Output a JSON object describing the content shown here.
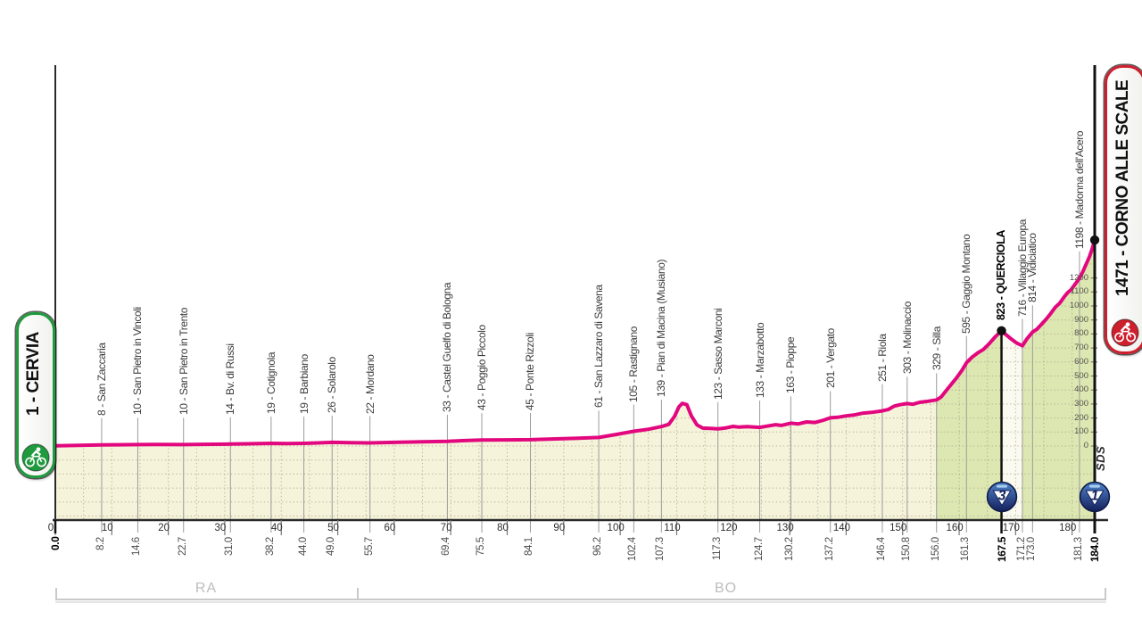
{
  "badges": {
    "start": {
      "label": "1 - CERVIA",
      "border_color": "#1f9a3d"
    },
    "finish": {
      "label": "1471 - CORNO ALLE SCALE",
      "border_color": "#ce1f2d"
    }
  },
  "sponsor": "SDS",
  "provinces": [
    {
      "label": "RA",
      "from_km": 0,
      "to_km": 53.4
    },
    {
      "label": "BO",
      "from_km": 53.4,
      "to_km": 184
    }
  ],
  "chart_data": {
    "type": "area",
    "x_unit": "km",
    "y_unit": "m",
    "x_range": [
      0,
      184
    ],
    "x_ticks": [
      0,
      10,
      20,
      30,
      40,
      50,
      60,
      70,
      80,
      90,
      100,
      110,
      120,
      130,
      140,
      150,
      160,
      170,
      180
    ],
    "elevation_axis_labels": [
      0,
      100,
      200,
      300,
      400,
      500,
      600,
      700,
      800,
      900,
      1000,
      1100,
      1200
    ],
    "profile_color": "#e2077e",
    "grid": "dotted",
    "fill_segments": [
      {
        "from_km": 0,
        "to_km": 156,
        "color": "#f5f3da"
      },
      {
        "from_km": 156,
        "to_km": 167.5,
        "color": "#dde7b2"
      },
      {
        "from_km": 167.5,
        "to_km": 171.2,
        "color": "#fbfaf0"
      },
      {
        "from_km": 171.2,
        "to_km": 184,
        "color": "#dde7b2"
      }
    ],
    "waypoints": [
      {
        "km": 0.0,
        "dist_label": "0.0",
        "name": null,
        "elev": 1,
        "bold": true
      },
      {
        "km": 8.2,
        "dist_label": "8.2",
        "name": "8 - San Zaccaria",
        "elev": 8
      },
      {
        "km": 14.6,
        "dist_label": "14.6",
        "name": "10 - San Pietro in Vincoli",
        "elev": 10
      },
      {
        "km": 22.7,
        "dist_label": "22.7",
        "name": "10 - San Pietro in Trento",
        "elev": 10
      },
      {
        "km": 31.0,
        "dist_label": "31.0",
        "name": "14 - Bv. di Russi",
        "elev": 14
      },
      {
        "km": 38.2,
        "dist_label": "38.2",
        "name": "19 - Cotignola",
        "elev": 19
      },
      {
        "km": 44.0,
        "dist_label": "44.0",
        "name": "19 - Barbiano",
        "elev": 19
      },
      {
        "km": 49.0,
        "dist_label": "49.0",
        "name": "26 - Solarolo",
        "elev": 26
      },
      {
        "km": 55.7,
        "dist_label": "55.7",
        "name": "22 - Mordano",
        "elev": 22
      },
      {
        "km": 69.4,
        "dist_label": "69.4",
        "name": "33 - Castel Guelfo di Bologna",
        "elev": 33
      },
      {
        "km": 75.5,
        "dist_label": "75.5",
        "name": "43 - Poggio Piccolo",
        "elev": 43
      },
      {
        "km": 84.1,
        "dist_label": "84.1",
        "name": "45 - Ponte Rizzoli",
        "elev": 45
      },
      {
        "km": 96.2,
        "dist_label": "96.2",
        "name": "61 - San Lazzaro di Savena",
        "elev": 61
      },
      {
        "km": 102.4,
        "dist_label": "102.4",
        "name": "105 - Rastignano",
        "elev": 105
      },
      {
        "km": 107.3,
        "dist_label": "107.3",
        "name": "139 - Pian di Macina (Musiano)",
        "elev": 139
      },
      {
        "km": 117.3,
        "dist_label": "117.3",
        "name": "123 - Sasso Marconi",
        "elev": 123
      },
      {
        "km": 124.7,
        "dist_label": "124.7",
        "name": "133 - Marzabotto",
        "elev": 133
      },
      {
        "km": 130.2,
        "dist_label": "130.2",
        "name": "163 - Pioppe",
        "elev": 163
      },
      {
        "km": 137.2,
        "dist_label": "137.2",
        "name": "201 - Vergato",
        "elev": 201
      },
      {
        "km": 146.4,
        "dist_label": "146.4",
        "name": "251 - Riola",
        "elev": 251
      },
      {
        "km": 150.8,
        "dist_label": "150.8",
        "name": "303 - Molinaccio",
        "elev": 303
      },
      {
        "km": 156.0,
        "dist_label": "156.0",
        "name": "329 - Silla",
        "elev": 329
      },
      {
        "km": 161.3,
        "dist_label": "161.3",
        "name": "595 - Gaggio Montano",
        "elev": 595
      },
      {
        "km": 167.5,
        "dist_label": "167.5",
        "name": "823 - QUERCIOLA",
        "elev": 823,
        "bold": true,
        "dot": true,
        "gpm": "3"
      },
      {
        "km": 171.2,
        "dist_label": "171.2",
        "name": "716 - Villaggio Europa",
        "elev": 716
      },
      {
        "km": 173.0,
        "dist_label": "173.0",
        "name": "814 - Vidiciatico",
        "elev": 814
      },
      {
        "km": 181.3,
        "dist_label": "181.3",
        "name": "1198 - Madonna dell'Acero",
        "elev": 1198
      },
      {
        "km": 184.0,
        "dist_label": "184.0",
        "name": null,
        "elev": 1471,
        "bold": true,
        "dot": true,
        "gpm": "1"
      }
    ],
    "profile": [
      [
        0,
        1
      ],
      [
        2,
        3
      ],
      [
        8.2,
        8
      ],
      [
        11,
        9
      ],
      [
        14.6,
        10
      ],
      [
        18,
        11
      ],
      [
        22.7,
        10
      ],
      [
        26,
        12
      ],
      [
        31,
        14
      ],
      [
        34,
        16
      ],
      [
        38.2,
        19
      ],
      [
        41,
        18
      ],
      [
        44,
        19
      ],
      [
        46.5,
        22
      ],
      [
        49,
        26
      ],
      [
        52,
        24
      ],
      [
        55.7,
        22
      ],
      [
        60,
        26
      ],
      [
        65,
        30
      ],
      [
        69.4,
        33
      ],
      [
        72,
        38
      ],
      [
        75.5,
        43
      ],
      [
        80,
        44
      ],
      [
        84.1,
        45
      ],
      [
        88,
        50
      ],
      [
        92,
        55
      ],
      [
        96.2,
        61
      ],
      [
        99,
        80
      ],
      [
        102.4,
        105
      ],
      [
        105,
        120
      ],
      [
        107.3,
        139
      ],
      [
        108.6,
        155
      ],
      [
        109.6,
        210
      ],
      [
        110.4,
        280
      ],
      [
        111,
        305
      ],
      [
        111.8,
        295
      ],
      [
        112.6,
        215
      ],
      [
        113.6,
        150
      ],
      [
        114.6,
        128
      ],
      [
        116,
        126
      ],
      [
        117.3,
        123
      ],
      [
        118.5,
        128
      ],
      [
        120,
        140
      ],
      [
        121,
        135
      ],
      [
        122.5,
        138
      ],
      [
        124.7,
        133
      ],
      [
        126,
        142
      ],
      [
        127.5,
        152
      ],
      [
        128.5,
        147
      ],
      [
        130.2,
        163
      ],
      [
        131.5,
        158
      ],
      [
        133,
        172
      ],
      [
        134.5,
        168
      ],
      [
        136,
        185
      ],
      [
        137.2,
        201
      ],
      [
        138.5,
        205
      ],
      [
        140,
        215
      ],
      [
        141.5,
        222
      ],
      [
        143,
        235
      ],
      [
        144.5,
        240
      ],
      [
        146.4,
        251
      ],
      [
        147.5,
        262
      ],
      [
        148.5,
        285
      ],
      [
        149.5,
        295
      ],
      [
        150.8,
        303
      ],
      [
        151.8,
        298
      ],
      [
        153,
        312
      ],
      [
        154.5,
        320
      ],
      [
        156,
        329
      ],
      [
        156.8,
        350
      ],
      [
        157.6,
        390
      ],
      [
        158.6,
        440
      ],
      [
        159.6,
        490
      ],
      [
        160.5,
        540
      ],
      [
        161.3,
        595
      ],
      [
        162.3,
        635
      ],
      [
        163.3,
        665
      ],
      [
        164.3,
        690
      ],
      [
        165.3,
        730
      ],
      [
        166.4,
        780
      ],
      [
        167.5,
        823
      ],
      [
        168.3,
        795
      ],
      [
        169.2,
        765
      ],
      [
        170.2,
        735
      ],
      [
        171.2,
        716
      ],
      [
        172,
        765
      ],
      [
        173,
        814
      ],
      [
        173.8,
        835
      ],
      [
        174.6,
        870
      ],
      [
        175.4,
        905
      ],
      [
        176.2,
        945
      ],
      [
        177,
        990
      ],
      [
        177.8,
        1020
      ],
      [
        178.6,
        1065
      ],
      [
        179.2,
        1095
      ],
      [
        179.8,
        1115
      ],
      [
        180.6,
        1160
      ],
      [
        181.3,
        1198
      ],
      [
        181.9,
        1245
      ],
      [
        182.5,
        1300
      ],
      [
        183.1,
        1355
      ],
      [
        183.6,
        1415
      ],
      [
        184,
        1471
      ]
    ]
  }
}
